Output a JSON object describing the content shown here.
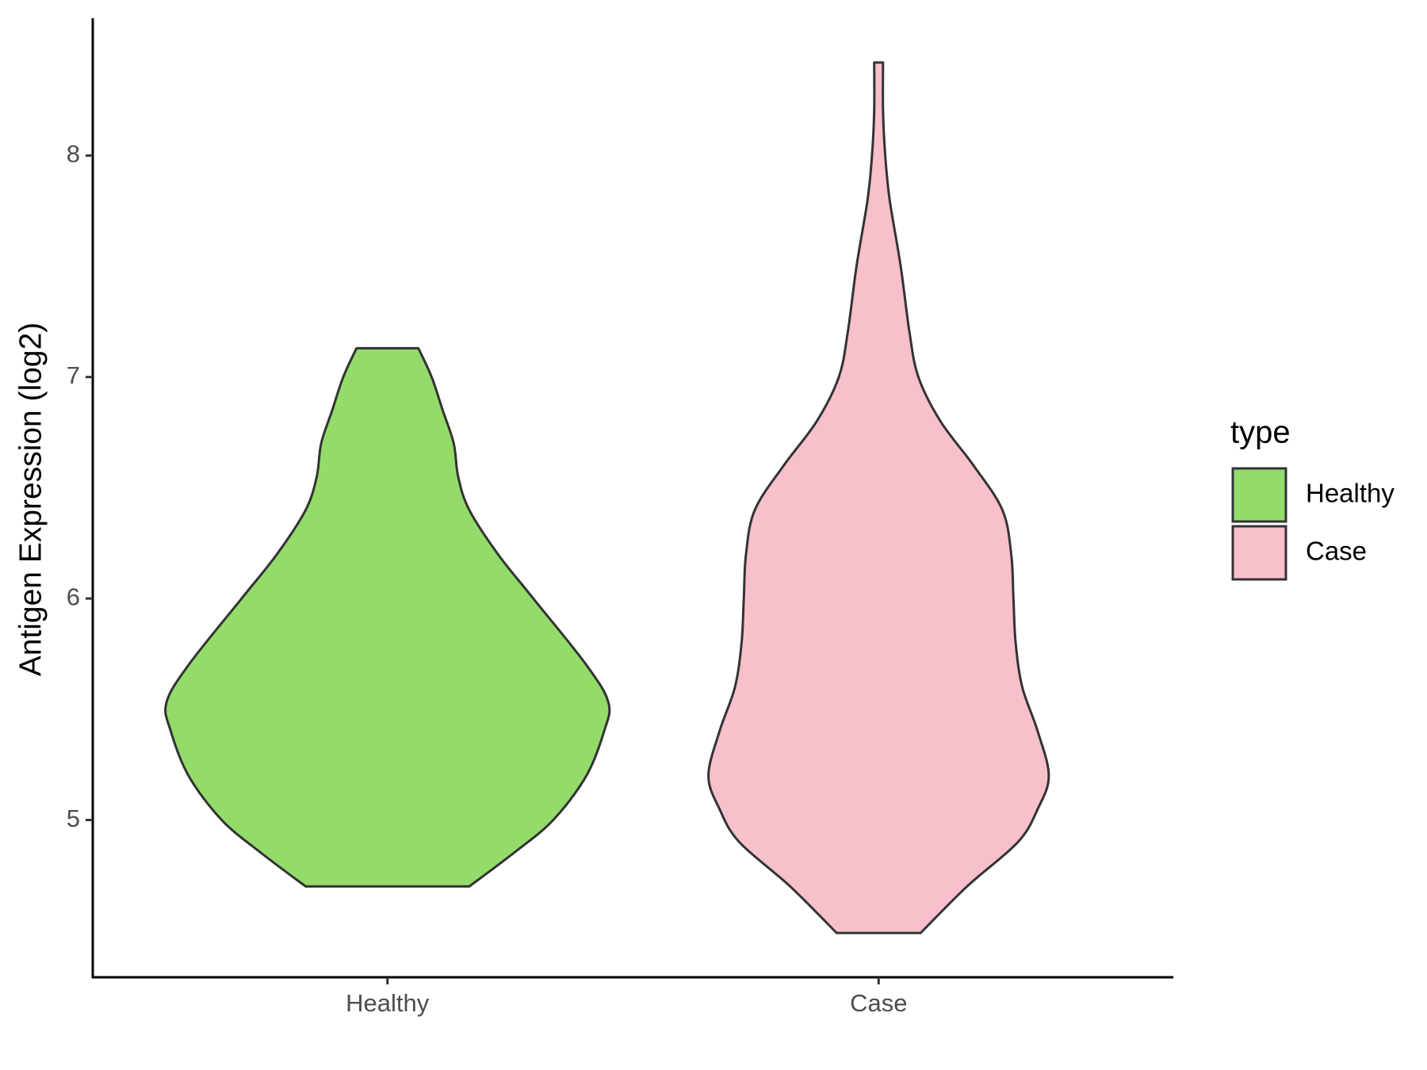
{
  "chart_data": {
    "type": "violin",
    "y_label": "Antigen Expression (log2)",
    "categories": [
      "Healthy",
      "Case"
    ],
    "legend_title": "type",
    "ylim": [
      4.29,
      8.62
    ],
    "yticks": [
      5,
      6,
      7,
      8
    ],
    "series": [
      {
        "name": "Healthy",
        "color": "#93dc6a",
        "y": [
          4.7,
          4.85,
          5.0,
          5.2,
          5.4,
          5.53,
          5.7,
          6.0,
          6.2,
          6.4,
          6.55,
          6.7,
          6.85,
          7.0,
          7.13
        ],
        "density": [
          0.37,
          0.57,
          0.75,
          0.9,
          0.98,
          1.0,
          0.9,
          0.66,
          0.5,
          0.37,
          0.32,
          0.3,
          0.25,
          0.2,
          0.14
        ]
      },
      {
        "name": "Case",
        "color": "#f7c0cb",
        "y": [
          4.49,
          4.7,
          4.9,
          5.05,
          5.2,
          5.4,
          5.6,
          5.8,
          6.0,
          6.2,
          6.4,
          6.6,
          6.8,
          7.0,
          7.2,
          7.5,
          7.8,
          8.0,
          8.2,
          8.42
        ],
        "density": [
          0.19,
          0.4,
          0.63,
          0.72,
          0.77,
          0.72,
          0.65,
          0.62,
          0.61,
          0.6,
          0.56,
          0.43,
          0.28,
          0.18,
          0.14,
          0.1,
          0.05,
          0.03,
          0.02,
          0.02
        ]
      }
    ]
  }
}
